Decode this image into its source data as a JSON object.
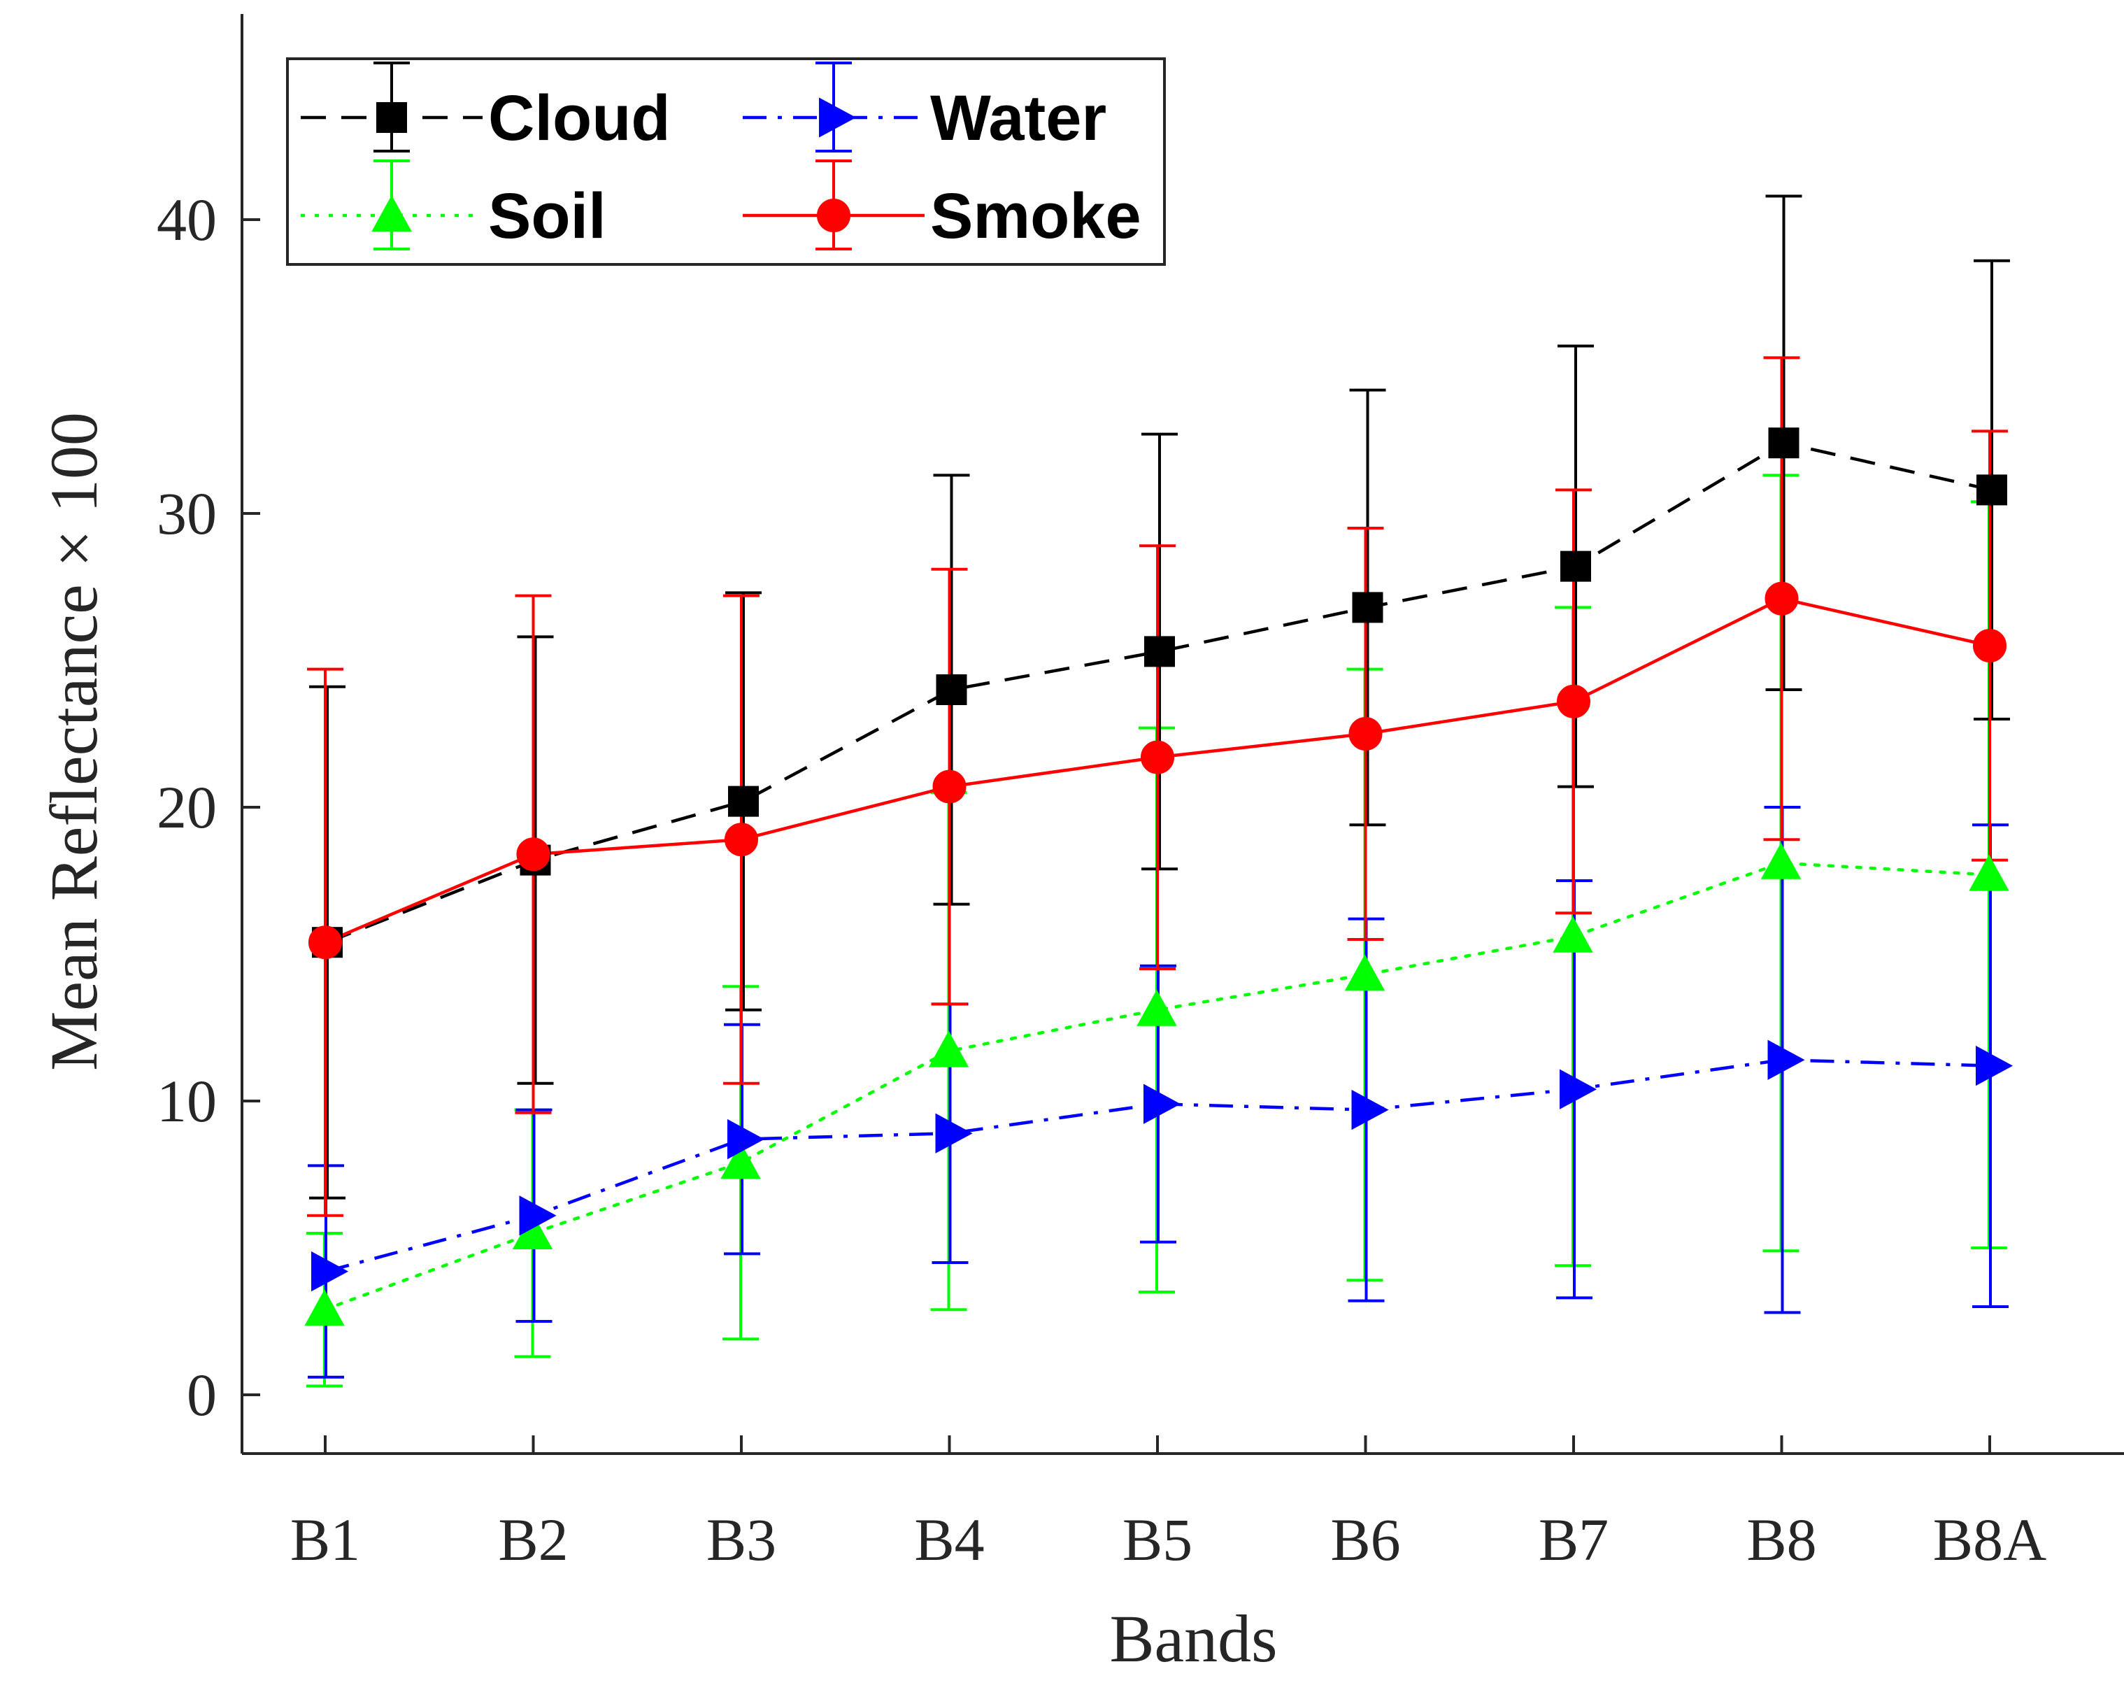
{
  "chart_data": {
    "type": "line",
    "title": "",
    "xlabel": "Bands",
    "ylabel": "Mean Reflectance × 100",
    "categories": [
      "B1",
      "B2",
      "B3",
      "B4",
      "B5",
      "B6",
      "B7",
      "B8",
      "B8A"
    ],
    "ylim": [
      -2,
      47
    ],
    "yticks": [
      0,
      10,
      20,
      30,
      40
    ],
    "grid": false,
    "legend_position": "top-left",
    "series": [
      {
        "name": "Cloud",
        "color": "#000000",
        "line_style": "dashed",
        "marker": "square",
        "values": [
          15.4,
          18.2,
          20.2,
          24.0,
          25.3,
          26.8,
          28.2,
          32.4,
          30.8
        ],
        "errors": [
          8.7,
          7.6,
          7.1,
          7.3,
          7.4,
          7.4,
          7.5,
          8.4,
          7.8
        ]
      },
      {
        "name": "Water",
        "color": "#0000ff",
        "line_style": "dashdot",
        "marker": "triangle-right",
        "values": [
          4.2,
          6.1,
          8.7,
          8.9,
          9.9,
          9.7,
          10.4,
          11.4,
          11.2
        ],
        "errors": [
          3.6,
          3.6,
          3.9,
          4.4,
          4.7,
          6.5,
          7.1,
          8.6,
          8.2
        ]
      },
      {
        "name": "Soil",
        "color": "#00ff00",
        "line_style": "dotted",
        "marker": "triangle-up",
        "values": [
          2.9,
          5.5,
          7.9,
          11.7,
          13.1,
          14.3,
          15.6,
          18.1,
          17.7
        ],
        "errors": [
          2.6,
          4.2,
          6.0,
          8.8,
          9.6,
          10.4,
          11.2,
          13.2,
          12.7
        ]
      },
      {
        "name": "Smoke",
        "color": "#ff0000",
        "line_style": "solid",
        "marker": "circle",
        "values": [
          15.4,
          18.4,
          18.9,
          20.7,
          21.7,
          22.5,
          23.6,
          27.1,
          25.5
        ],
        "errors": [
          9.3,
          8.8,
          8.3,
          7.4,
          7.2,
          7.0,
          7.2,
          8.2,
          7.3
        ]
      }
    ]
  }
}
